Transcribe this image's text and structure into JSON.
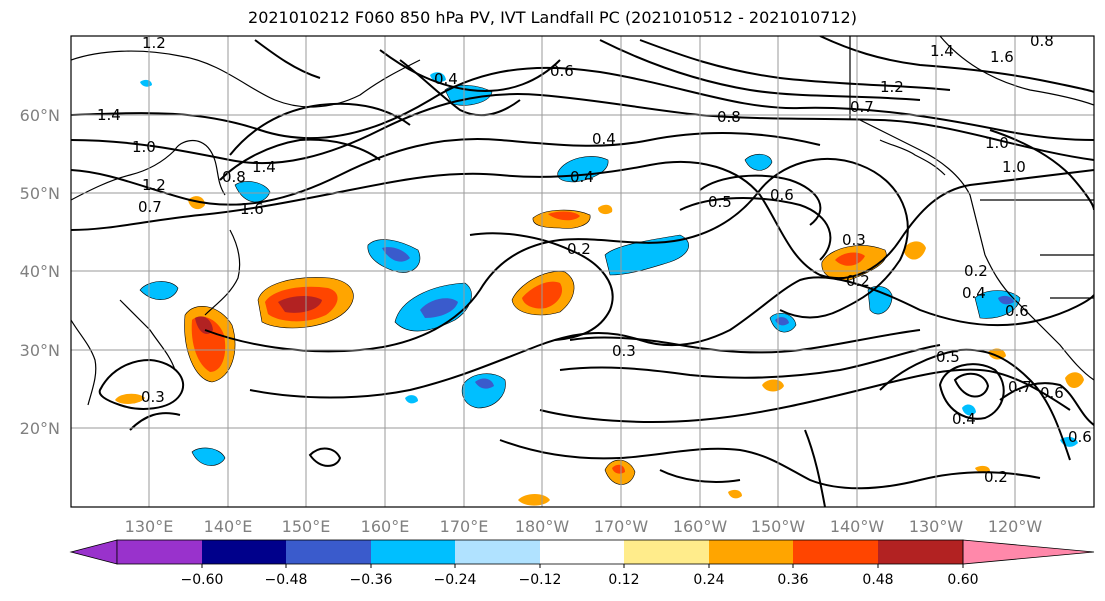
{
  "title": "2021010212 F060 850 hPa PV, IVT Landfall PC (2021010512 - 2021010712)",
  "lat_labels": [
    "60°N",
    "50°N",
    "40°N",
    "30°N",
    "20°N"
  ],
  "lon_labels": [
    "130°E",
    "140°E",
    "150°E",
    "160°E",
    "170°E",
    "180°W",
    "170°W",
    "160°W",
    "150°W",
    "140°W",
    "130°W",
    "120°W"
  ],
  "colorbar": {
    "ticks": [
      "−0.60",
      "−0.48",
      "−0.36",
      "−0.24",
      "−0.12",
      "0.12",
      "0.24",
      "0.36",
      "0.48",
      "0.60"
    ],
    "colors": [
      "#9932cc",
      "#00008b",
      "#3a5bcc",
      "#00bfff",
      "#b0e2ff",
      "#ffffff",
      "#ffec8b",
      "#ffa500",
      "#ff4500",
      "#b22222",
      "#ff88aa"
    ]
  },
  "contour_labels": [
    "1.2",
    "1.4",
    "1.0",
    "1.2",
    "0.8",
    "0.7",
    "0.6",
    "0.4",
    "0.4",
    "0.4",
    "0.2",
    "0.3",
    "0.3",
    "0.5",
    "0.6",
    "0.2",
    "0.3",
    "0.2",
    "0.4",
    "0.5",
    "0.6",
    "0.7",
    "0.6",
    "0.4",
    "0.2",
    "1.4",
    "1.6",
    "0.8",
    "1.2",
    "1.0",
    "0.8",
    "0.7",
    "1.0",
    "1.4",
    "1.6",
    "0.6"
  ]
}
